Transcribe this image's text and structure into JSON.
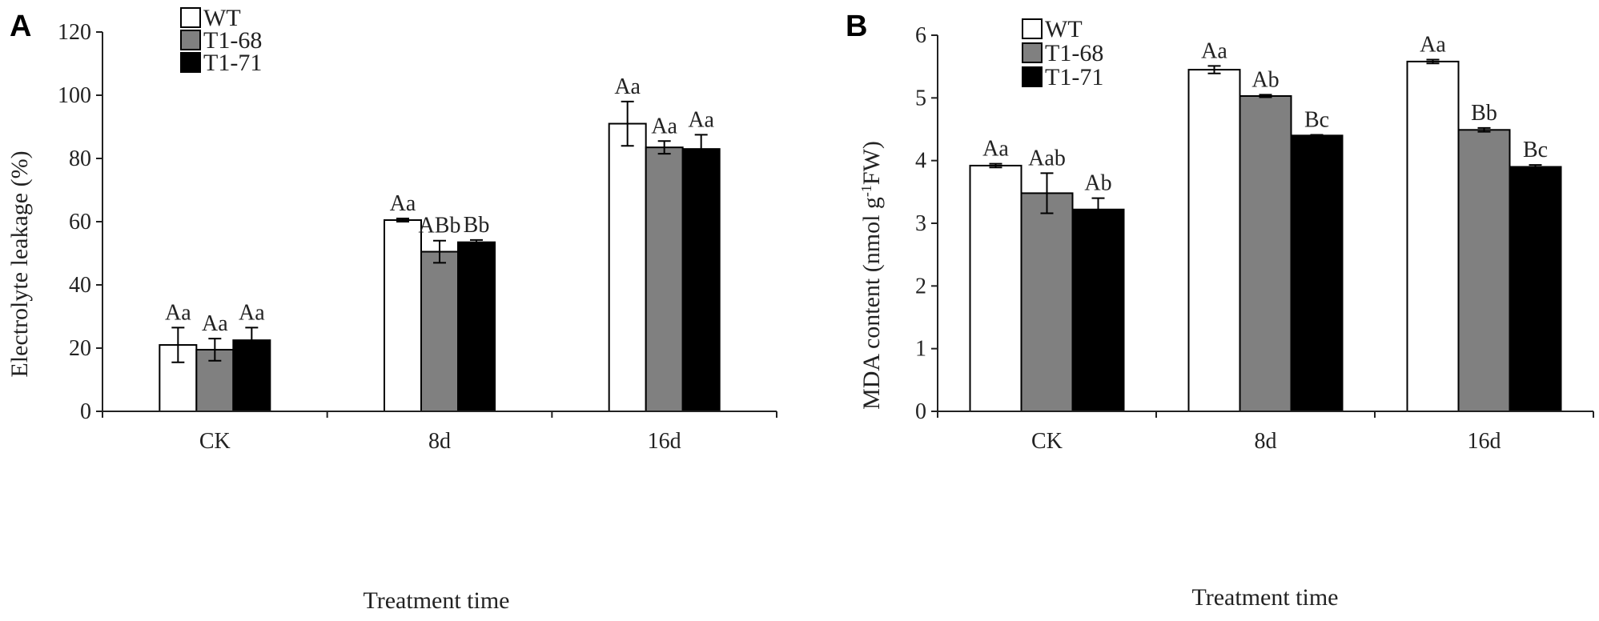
{
  "chart_data": [
    {
      "panel": "A",
      "type": "bar",
      "categories": [
        "CK",
        "8d",
        "16d"
      ],
      "series": [
        {
          "name": "WT",
          "color": "#ffffff",
          "values": [
            21,
            60.5,
            91
          ],
          "errors": [
            5.5,
            0.5,
            7
          ],
          "labels": [
            "Aa",
            "Aa",
            "Aa"
          ]
        },
        {
          "name": "T1-68",
          "color": "#808080",
          "values": [
            19.5,
            50.5,
            83.5
          ],
          "errors": [
            3.5,
            3.5,
            2
          ],
          "labels": [
            "Aa",
            "ABb",
            "Aa"
          ]
        },
        {
          "name": "T1-71",
          "color": "#000000",
          "values": [
            22.5,
            53.5,
            83
          ],
          "errors": [
            4,
            0.7,
            4.5
          ],
          "labels": [
            "Aa",
            "Bb",
            "Aa"
          ]
        }
      ],
      "ylim": [
        0,
        120
      ],
      "yticks": [
        "0",
        "20",
        "40",
        "60",
        "80",
        "100",
        "120"
      ],
      "xlabel": "Treatment time",
      "ylabel": "Electrolyte leakage (%)"
    },
    {
      "panel": "B",
      "type": "bar",
      "categories": [
        "CK",
        "8d",
        "16d"
      ],
      "series": [
        {
          "name": "WT",
          "color": "#ffffff",
          "values": [
            3.92,
            5.45,
            5.58
          ],
          "errors": [
            0.03,
            0.06,
            0.03
          ],
          "labels": [
            "Aa",
            "Aa",
            "Aa"
          ]
        },
        {
          "name": "T1-68",
          "color": "#808080",
          "values": [
            3.48,
            5.03,
            4.49
          ],
          "errors": [
            0.32,
            0.02,
            0.03
          ],
          "labels": [
            "Aab",
            "Ab",
            "Bb"
          ]
        },
        {
          "name": "T1-71",
          "color": "#000000",
          "values": [
            3.22,
            4.4,
            3.9
          ],
          "errors": [
            0.18,
            0.01,
            0.03
          ],
          "labels": [
            "Ab",
            "Bc",
            "Bc"
          ]
        }
      ],
      "ylim": [
        0,
        6
      ],
      "yticks": [
        "0",
        "1",
        "2",
        "3",
        "4",
        "5",
        "6"
      ],
      "xlabel": "Treatment time",
      "ylabel_main": "MDA content (nmol g",
      "ylabel_sup": "-1",
      "ylabel_tail": "FW)"
    }
  ]
}
